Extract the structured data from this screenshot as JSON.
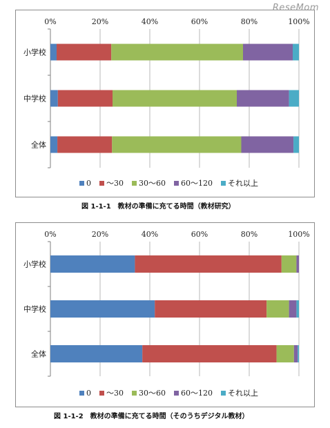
{
  "watermark": "ReseMom",
  "charts": [
    {
      "type": "bar",
      "orientation": "horizontal-stacked-100",
      "categories": [
        "小学校",
        "中学校",
        "全体"
      ],
      "series": [
        {
          "name": "0",
          "values": [
            2.5,
            3,
            2.8
          ],
          "color": "#4f81bd"
        },
        {
          "name": "～30",
          "values": [
            22,
            22,
            22
          ],
          "color": "#c0504d"
        },
        {
          "name": "30～60",
          "values": [
            53,
            50,
            52
          ],
          "color": "#9bbb59"
        },
        {
          "name": "60～120",
          "values": [
            20,
            21,
            21
          ],
          "color": "#8064a2"
        },
        {
          "name": "それ以上",
          "values": [
            2.5,
            4,
            2.2
          ],
          "color": "#4bacc6"
        }
      ],
      "xlim": [
        0,
        100
      ],
      "ticks": [
        "0%",
        "20%",
        "40%",
        "60%",
        "80%",
        "100%"
      ],
      "grid": true,
      "legend": "bottom",
      "caption": "図 1-1-1　教材の準備に充てる時間（教材研究）"
    },
    {
      "type": "bar",
      "orientation": "horizontal-stacked-100",
      "categories": [
        "小学校",
        "中学校",
        "全体"
      ],
      "series": [
        {
          "name": "0",
          "values": [
            34,
            42,
            37
          ],
          "color": "#4f81bd"
        },
        {
          "name": "～30",
          "values": [
            59,
            45,
            54
          ],
          "color": "#c0504d"
        },
        {
          "name": "30～60",
          "values": [
            6,
            9,
            7
          ],
          "color": "#9bbb59"
        },
        {
          "name": "60～120",
          "values": [
            1,
            3,
            1.5
          ],
          "color": "#8064a2"
        },
        {
          "name": "それ以上",
          "values": [
            0,
            1,
            0.5
          ],
          "color": "#4bacc6"
        }
      ],
      "xlim": [
        0,
        100
      ],
      "ticks": [
        "0%",
        "20%",
        "40%",
        "60%",
        "80%",
        "100%"
      ],
      "grid": true,
      "legend": "bottom",
      "caption": "図 1-1-2　教材の準備に充てる時間（そのうちデジタル教材）"
    }
  ]
}
